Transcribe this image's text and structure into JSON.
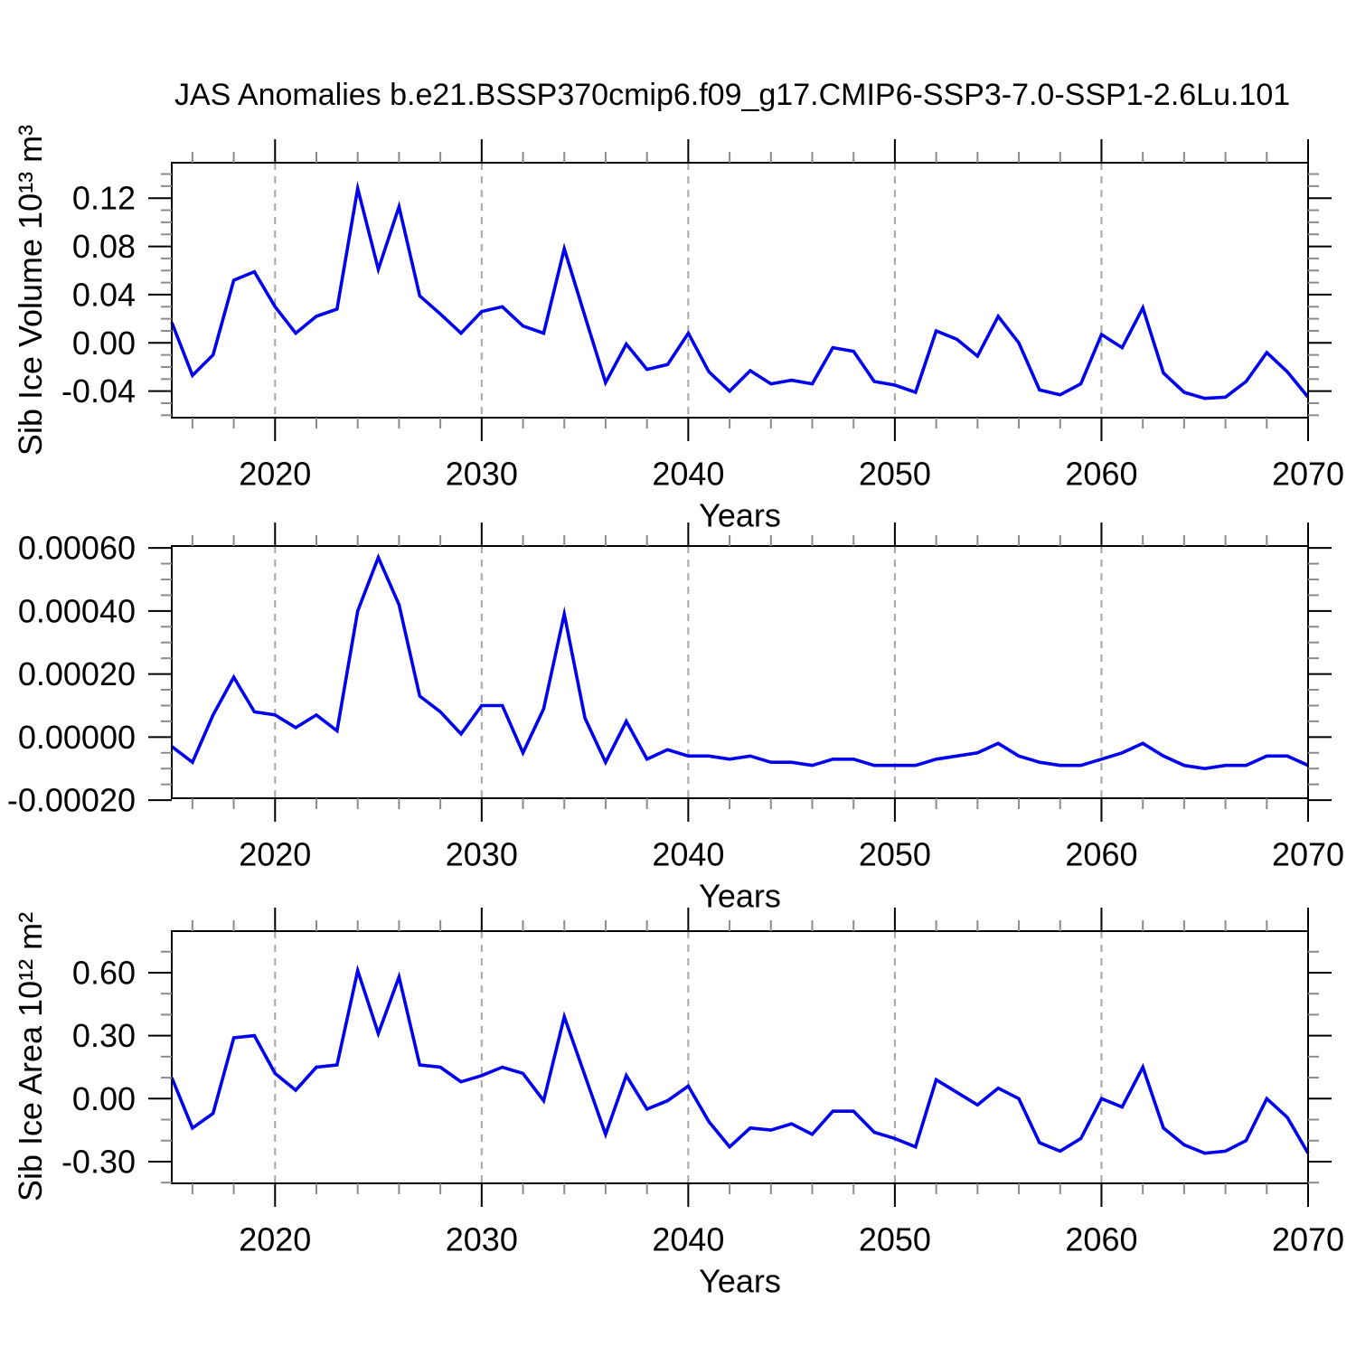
{
  "figure": {
    "title": "JAS Anomalies b.e21.BSSP370cmip6.f09_g17.CMIP6-SSP3-7.0-SSP1-2.6Lu.101"
  },
  "colors": {
    "line": "#0000f0",
    "grid": "#a6a6a6",
    "axis": "#000000",
    "minor_tick": "#8c8c8c",
    "background": "#ffffff"
  },
  "years": [
    2015,
    2016,
    2017,
    2018,
    2019,
    2020,
    2021,
    2022,
    2023,
    2024,
    2025,
    2026,
    2027,
    2028,
    2029,
    2030,
    2031,
    2032,
    2033,
    2034,
    2035,
    2036,
    2037,
    2038,
    2039,
    2040,
    2041,
    2042,
    2043,
    2044,
    2045,
    2046,
    2047,
    2048,
    2049,
    2050,
    2051,
    2052,
    2053,
    2054,
    2055,
    2056,
    2057,
    2058,
    2059,
    2060,
    2061,
    2062,
    2063,
    2064,
    2065,
    2066,
    2067,
    2068,
    2069,
    2070
  ],
  "chart_data": [
    {
      "type": "line",
      "title": "",
      "ylabel": "Sib Ice Volume 10¹³ m³",
      "xlabel": "Years",
      "xlim": [
        2015,
        2070
      ],
      "ylim": [
        -0.062,
        0.149
      ],
      "grid": "vertical-dashed",
      "legend": null,
      "xticks": [
        2020,
        2030,
        2040,
        2050,
        2060,
        2070
      ],
      "xminor_step": 2,
      "grid_x": [
        2020,
        2030,
        2040,
        2050,
        2060
      ],
      "yticks": {
        "values": [
          0.12,
          0.08,
          0.04,
          0.0,
          -0.04
        ],
        "labels": [
          "0.12",
          "0.08",
          "0.04",
          "0.00",
          "-0.04"
        ]
      },
      "yminor_step": 0.01,
      "values": [
        0.017,
        -0.027,
        -0.01,
        0.052,
        0.059,
        0.03,
        0.008,
        0.022,
        0.028,
        0.128,
        0.061,
        0.113,
        0.039,
        0.024,
        0.008,
        0.026,
        0.03,
        0.014,
        0.008,
        0.078,
        0.022,
        -0.033,
        -0.001,
        -0.022,
        -0.018,
        0.008,
        -0.024,
        -0.04,
        -0.023,
        -0.034,
        -0.031,
        -0.034,
        -0.004,
        -0.007,
        -0.032,
        -0.035,
        -0.041,
        0.01,
        0.003,
        -0.011,
        0.022,
        0.0,
        -0.039,
        -0.043,
        -0.034,
        0.007,
        -0.004,
        0.029,
        -0.025,
        -0.041,
        -0.046,
        -0.045,
        -0.032,
        -0.008,
        -0.024,
        -0.045
      ]
    },
    {
      "type": "line",
      "title": "",
      "ylabel": "",
      "xlabel": "Years",
      "xlim": [
        2015,
        2070
      ],
      "ylim": [
        -0.000194,
        0.000606
      ],
      "grid": "vertical-dashed",
      "legend": null,
      "xticks": [
        2020,
        2030,
        2040,
        2050,
        2060,
        2070
      ],
      "xminor_step": 2,
      "grid_x": [
        2020,
        2030,
        2040,
        2050,
        2060
      ],
      "yticks": {
        "values": [
          0.0006,
          0.0004,
          0.0002,
          0.0,
          -0.0002
        ],
        "labels": [
          "0.00060",
          "0.00040",
          "0.00020",
          "0.00000",
          "-0.00020"
        ]
      },
      "yminor_step": 5e-05,
      "values": [
        -3e-05,
        -8e-05,
        7e-05,
        0.00019,
        8e-05,
        7e-05,
        3e-05,
        7e-05,
        2e-05,
        0.0004,
        0.00057,
        0.00042,
        0.00013,
        8e-05,
        1e-05,
        0.0001,
        0.0001,
        -5e-05,
        9e-05,
        0.00039,
        6e-05,
        -8e-05,
        5e-05,
        -7e-05,
        -4e-05,
        -6e-05,
        -6e-05,
        -7e-05,
        -6e-05,
        -8e-05,
        -8e-05,
        -9e-05,
        -7e-05,
        -7e-05,
        -9e-05,
        -9e-05,
        -9e-05,
        -7e-05,
        -6e-05,
        -5e-05,
        -2e-05,
        -6e-05,
        -8e-05,
        -9e-05,
        -9e-05,
        -7e-05,
        -5e-05,
        -2e-05,
        -6e-05,
        -9e-05,
        -0.0001,
        -9e-05,
        -9e-05,
        -6e-05,
        -6e-05,
        -9e-05
      ]
    },
    {
      "type": "line",
      "title": "",
      "ylabel": "Sib Ice Area 10¹² m²",
      "xlabel": "Years",
      "xlim": [
        2015,
        2070
      ],
      "ylim": [
        -0.4,
        0.8
      ],
      "grid": "vertical-dashed",
      "legend": null,
      "xticks": [
        2020,
        2030,
        2040,
        2050,
        2060,
        2070
      ],
      "xminor_step": 2,
      "grid_x": [
        2020,
        2030,
        2040,
        2050,
        2060
      ],
      "yticks": {
        "values": [
          0.6,
          0.3,
          0.0,
          -0.3
        ],
        "labels": [
          "0.60",
          "0.30",
          "0.00",
          "-0.30"
        ]
      },
      "yminor_step": 0.1,
      "values": [
        0.1,
        -0.14,
        -0.07,
        0.29,
        0.3,
        0.12,
        0.04,
        0.15,
        0.16,
        0.61,
        0.31,
        0.58,
        0.16,
        0.15,
        0.08,
        0.11,
        0.15,
        0.12,
        -0.01,
        0.39,
        0.11,
        -0.17,
        0.11,
        -0.05,
        -0.01,
        0.06,
        -0.11,
        -0.23,
        -0.14,
        -0.15,
        -0.12,
        -0.17,
        -0.06,
        -0.06,
        -0.16,
        -0.19,
        -0.23,
        0.09,
        0.03,
        -0.03,
        0.05,
        0.0,
        -0.21,
        -0.25,
        -0.19,
        0.0,
        -0.04,
        0.15,
        -0.14,
        -0.22,
        -0.26,
        -0.25,
        -0.2,
        0.0,
        -0.09,
        -0.26
      ]
    }
  ]
}
